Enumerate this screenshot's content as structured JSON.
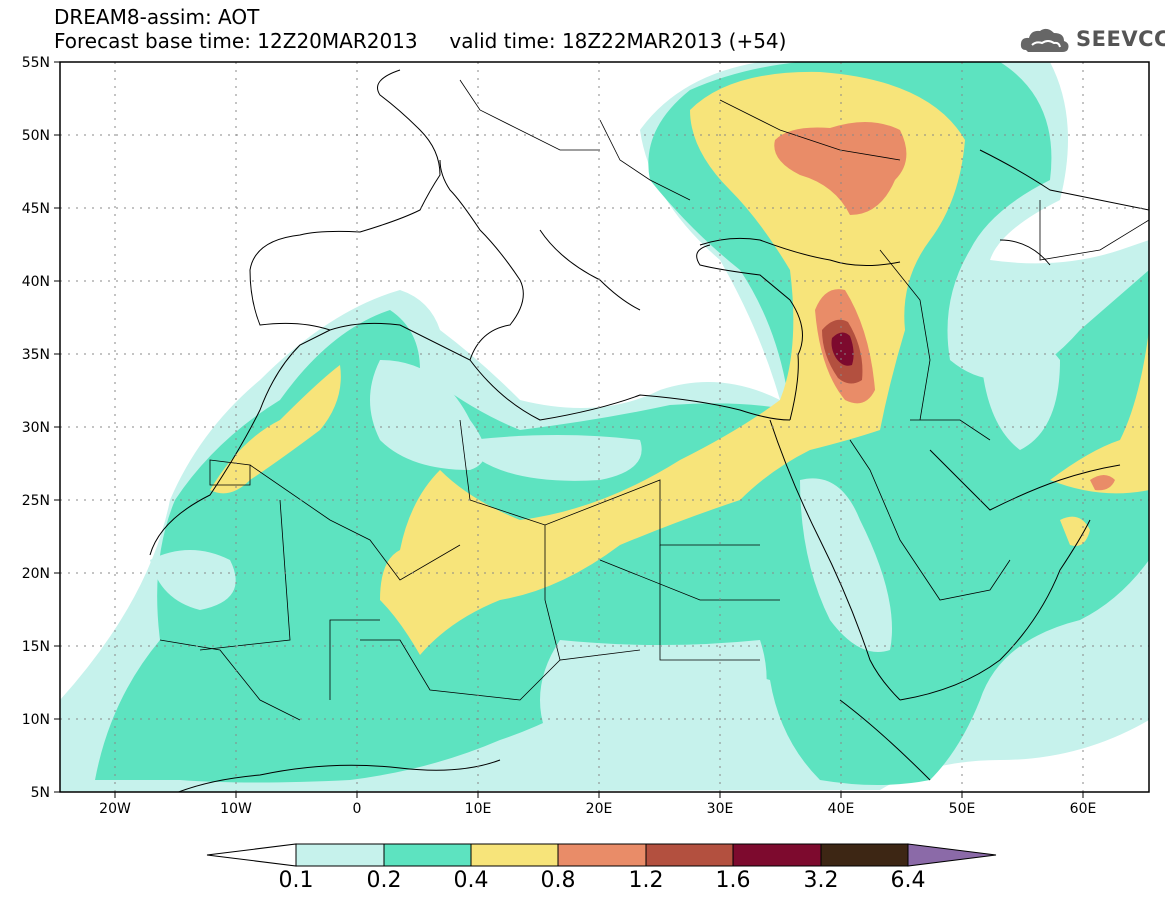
{
  "header": {
    "line1": "DREAM8-assim: AOT",
    "line2": "Forecast base time: 12Z20MAR2013     valid time: 18Z22MAR2013 (+54)",
    "logo_text": "SEEVCCC",
    "logo_icon": "cloud-icon"
  },
  "map": {
    "lon_range": [
      -25,
      65
    ],
    "lat_range": [
      5,
      55
    ],
    "lat_labels": [
      "55N",
      "50N",
      "45N",
      "40N",
      "35N",
      "30N",
      "25N",
      "20N",
      "15N",
      "10N",
      "5N"
    ],
    "lon_labels": [
      "20W",
      "10W",
      "0",
      "10E",
      "20E",
      "30E",
      "40E",
      "50E",
      "60E"
    ],
    "gridlines": "dotted"
  },
  "colorbar": {
    "levels": [
      "0.1",
      "0.2",
      "0.4",
      "0.8",
      "1.2",
      "1.6",
      "3.2",
      "6.4"
    ],
    "colors": [
      "#ffffff",
      "#c6f2ec",
      "#5de3c0",
      "#f7e47a",
      "#e98c68",
      "#b3503f",
      "#7d0a2e",
      "#3d2614",
      "#8b6aa8"
    ]
  }
}
